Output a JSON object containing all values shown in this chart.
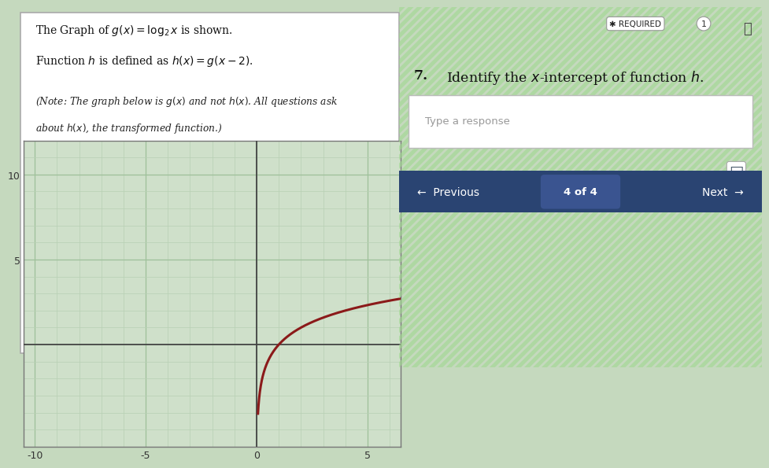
{
  "bg_color": "#c5d9be",
  "left_panel_bg": "#ffffff",
  "right_panel_bg": "#d4e8ce",
  "graph_bg": "#cfe0ca",
  "graph_xlim": [
    -10.5,
    6.5
  ],
  "graph_ylim": [
    -6,
    12
  ],
  "graph_xtick_major": [
    -10,
    -5,
    0,
    5
  ],
  "graph_ytick_major": [
    5,
    10
  ],
  "graph_ytick_at_zero": 0,
  "curve_color": "#8b1a1a",
  "curve_linewidth": 2.2,
  "grid_minor_color": "#b8d0b4",
  "grid_major_color": "#9ec09a",
  "axis_color": "#444444",
  "text_line1": "The Graph of $g(x) = \\log_2 x$ is shown.",
  "text_line2": "Function $h$ is defined as $h(x) = g(x - 2)$.",
  "text_note_line1": "(Note: The graph below is $g(x)$ and not $h(x)$. All questions ask",
  "text_note_line2": "about $h(x)$, the transformed function.)",
  "question_number": "7.",
  "question_text": "Identify the $x$-intercept of function $h$.",
  "input_placeholder": "Type a response",
  "nav_bg": "#2a4472",
  "nav_badge_bg": "#3a5490",
  "nav_text_color": "#ffffff",
  "nav_left": "←  Previous",
  "nav_center": "4 of 4",
  "nav_right": "Next  →",
  "stripe_color1": "#8edd7a",
  "stripe_color2": "#ffffff",
  "required_badge_color": "#ffffff",
  "panel_border_color": "#aaaaaa",
  "comment_icon_color": "#444466"
}
